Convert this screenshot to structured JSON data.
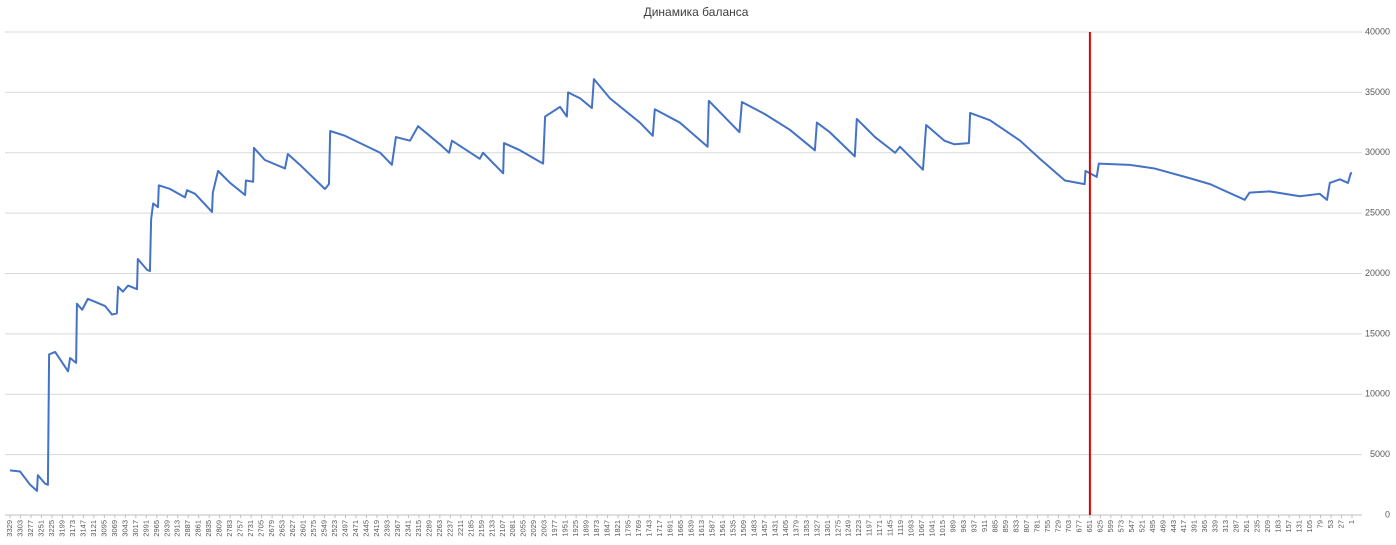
{
  "chart_data": {
    "type": "line",
    "title": "Динамика баланса",
    "xlim": [
      3329,
      1
    ],
    "xticks": [
      3329,
      3303,
      3277,
      3251,
      3225,
      3199,
      3173,
      3147,
      3121,
      3095,
      3069,
      3043,
      3017,
      2991,
      2965,
      2939,
      2913,
      2887,
      2861,
      2835,
      2809,
      2783,
      2757,
      2731,
      2705,
      2679,
      2653,
      2627,
      2601,
      2575,
      2549,
      2523,
      2497,
      2471,
      2445,
      2419,
      2393,
      2367,
      2341,
      2315,
      2289,
      2263,
      2237,
      2211,
      2185,
      2159,
      2133,
      2107,
      2081,
      2055,
      2029,
      2003,
      1977,
      1951,
      1925,
      1899,
      1873,
      1847,
      1821,
      1795,
      1769,
      1743,
      1717,
      1691,
      1665,
      1639,
      1613,
      1587,
      1561,
      1535,
      1509,
      1483,
      1457,
      1431,
      1405,
      1379,
      1353,
      1327,
      1301,
      1275,
      1249,
      1223,
      1197,
      1171,
      1145,
      1119,
      1093,
      1067,
      1041,
      1015,
      989,
      963,
      937,
      911,
      885,
      859,
      833,
      807,
      781,
      755,
      729,
      703,
      677,
      651,
      625,
      599,
      573,
      547,
      521,
      495,
      469,
      443,
      417,
      391,
      365,
      339,
      313,
      287,
      261,
      235,
      209,
      183,
      157,
      131,
      105,
      79,
      53,
      27,
      1
    ],
    "ylim": [
      0,
      40000
    ],
    "yticks": [
      0,
      5000,
      10000,
      15000,
      20000,
      25000,
      30000,
      35000,
      40000
    ],
    "grid": true,
    "color": "#4472c4",
    "vline": {
      "x": 651,
      "color": "#e00000"
    },
    "x": [
      3329,
      3304,
      3279,
      3262,
      3260,
      3242,
      3235,
      3232,
      3217,
      3185,
      3180,
      3165,
      3163,
      3150,
      3136,
      3093,
      3076,
      3064,
      3061,
      3049,
      3036,
      3014,
      3012,
      2989,
      2982,
      2979,
      2974,
      2962,
      2960,
      2932,
      2895,
      2890,
      2870,
      2828,
      2826,
      2813,
      2783,
      2746,
      2744,
      2726,
      2724,
      2697,
      2647,
      2640,
      2610,
      2548,
      2538,
      2535,
      2498,
      2411,
      2382,
      2372,
      2337,
      2317,
      2263,
      2240,
      2233,
      2164,
      2156,
      2106,
      2104,
      2064,
      2007,
      2002,
      1965,
      1948,
      1945,
      1915,
      1886,
      1881,
      1841,
      1767,
      1735,
      1730,
      1668,
      1599,
      1596,
      1520,
      1514,
      1457,
      1395,
      1333,
      1328,
      1296,
      1234,
      1229,
      1184,
      1134,
      1122,
      1065,
      1057,
      1012,
      987,
      951,
      948,
      899,
      824,
      775,
      713,
      664,
      662,
      634,
      629,
      553,
      491,
      404,
      353,
      267,
      255,
      205,
      130,
      81,
      63,
      56,
      31,
      11,
      4,
      1
    ],
    "values": [
      3700,
      3600,
      2500,
      2000,
      3300,
      2600,
      2500,
      13300,
      13500,
      11900,
      13000,
      12600,
      17500,
      17000,
      17900,
      17300,
      16600,
      16700,
      18900,
      18500,
      19000,
      18700,
      21200,
      20300,
      20200,
      24500,
      25800,
      25500,
      27300,
      27000,
      26300,
      26900,
      26600,
      25100,
      26700,
      28500,
      27500,
      26500,
      27700,
      27600,
      30400,
      29400,
      28700,
      29900,
      29000,
      27000,
      27400,
      31800,
      31400,
      30000,
      29000,
      31300,
      31000,
      32200,
      30700,
      30000,
      31000,
      29500,
      30000,
      28300,
      30800,
      30200,
      29100,
      33000,
      33800,
      33000,
      35000,
      34500,
      33700,
      36100,
      34500,
      32500,
      31400,
      33600,
      32500,
      30500,
      34300,
      31700,
      34200,
      33200,
      31900,
      30200,
      32500,
      31700,
      29700,
      32800,
      31300,
      30000,
      30500,
      28600,
      32300,
      31000,
      30700,
      30800,
      33300,
      32700,
      31000,
      29500,
      27700,
      27400,
      28500,
      28000,
      29100,
      29000,
      28700,
      27900,
      27400,
      26100,
      26700,
      26800,
      26400,
      26600,
      26100,
      27500,
      27800,
      27500,
      28300,
      28300
    ]
  }
}
